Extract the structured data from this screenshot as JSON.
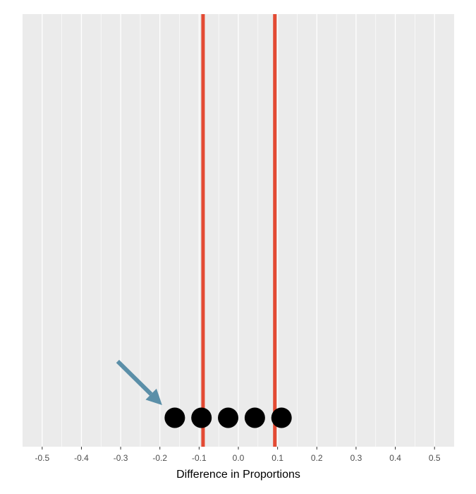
{
  "chart_data": {
    "type": "scatter",
    "title": "",
    "xlabel": "Difference in Proportions",
    "ylabel": "",
    "xlim": [
      -0.55,
      0.55
    ],
    "x_ticks": [
      -0.5,
      -0.4,
      -0.3,
      -0.2,
      -0.1,
      0.0,
      0.1,
      0.2,
      0.3,
      0.4,
      0.5
    ],
    "x_tick_labels": [
      "-0.5",
      "-0.4",
      "-0.3",
      "-0.2",
      "-0.1",
      "0.0",
      "0.1",
      "0.2",
      "0.3",
      "0.4",
      "0.5"
    ],
    "grid": true,
    "points": [
      -0.162,
      -0.094,
      -0.026,
      0.042,
      0.11
    ],
    "point_color": "#000000",
    "reference_lines": [
      -0.09,
      0.093
    ],
    "reference_line_color": "#e34a33",
    "arrow_color": "#5b8fa8",
    "panel_background": "#ebebeb",
    "grid_color": "#ffffff"
  }
}
